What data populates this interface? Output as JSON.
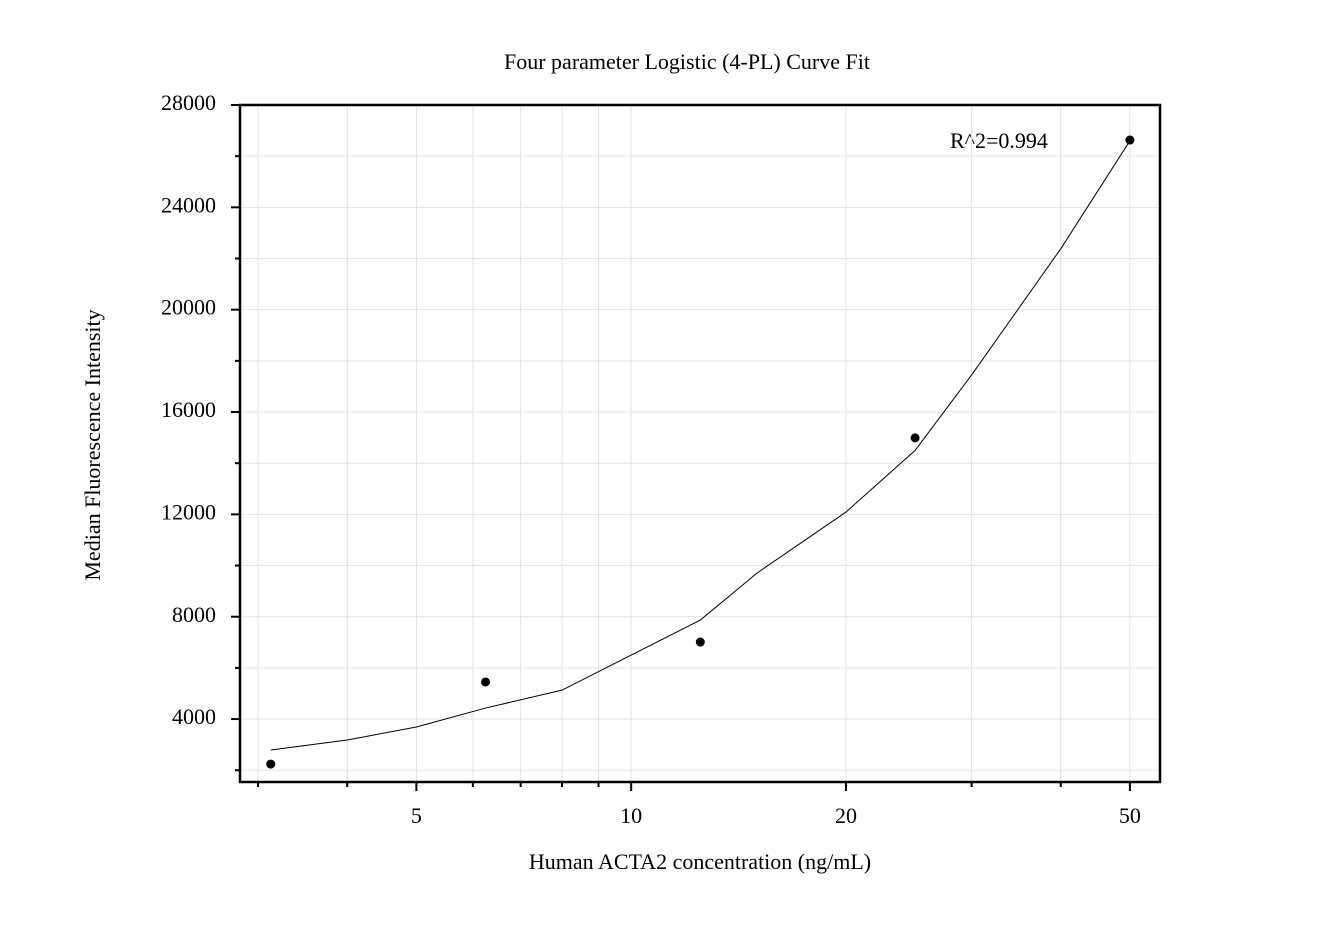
{
  "chart_data": {
    "type": "scatter",
    "title": "Four parameter Logistic (4-PL) Curve Fit",
    "x_label": "Human ACTA2 concentration (ng/mL)",
    "y_label": "Median Fluorescence Intensity",
    "annotation": "R^2=0.994",
    "xscale": "log",
    "xlim": [
      2.83,
      55.1
    ],
    "xticks": [
      5,
      10,
      20,
      50
    ],
    "xminorticks": [
      3,
      4,
      6,
      7,
      8,
      9,
      30,
      40
    ],
    "ylim": [
      1540,
      28000
    ],
    "yticks": [
      4000,
      8000,
      12000,
      16000,
      20000,
      24000,
      28000
    ],
    "yminorticks": [
      2000,
      6000,
      10000,
      14000,
      18000,
      22000,
      26000
    ],
    "grid": true,
    "series": [
      {
        "type": "scatter",
        "color": "#000000",
        "x": [
          3.125,
          6.25,
          12.5,
          25,
          50
        ],
        "values": [
          2240,
          5450,
          7010,
          14990,
          26630
        ]
      },
      {
        "type": "line",
        "color": "#000000",
        "x": [
          3.125,
          4,
          5,
          6.25,
          8,
          10,
          12.5,
          15,
          20,
          25,
          30,
          40,
          50
        ],
        "values": [
          2790,
          3180,
          3690,
          4430,
          5130,
          6500,
          7870,
          9700,
          12090,
          14500,
          17450,
          22380,
          26600
        ]
      }
    ]
  }
}
